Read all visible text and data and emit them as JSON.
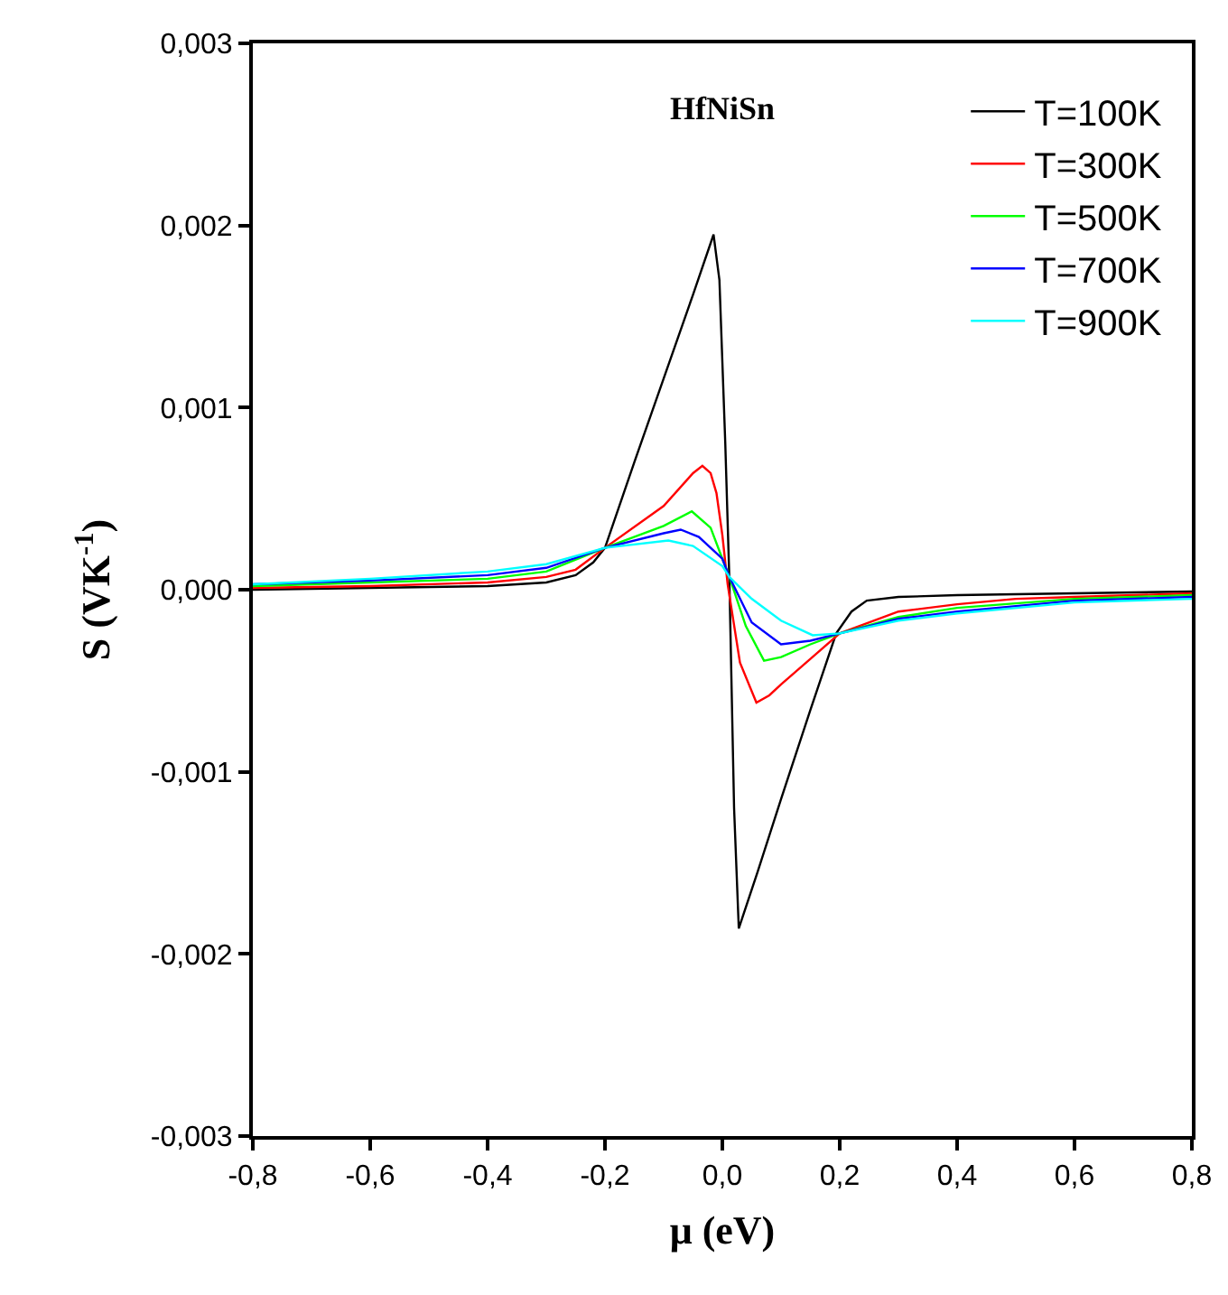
{
  "chart_data": {
    "type": "line",
    "xlabel": "μ (eV)",
    "ylabel": "S (VK$^{-1}$)",
    "annotations": [
      "HfNiSn"
    ],
    "xlim": [
      -0.8,
      0.8
    ],
    "xticks": [
      {
        "value": -0.8,
        "label": "-0,8"
      },
      {
        "value": -0.6,
        "label": "-0,6"
      },
      {
        "value": -0.4,
        "label": "-0,4"
      },
      {
        "value": -0.2,
        "label": "-0,2"
      },
      {
        "value": 0,
        "label": "0,0"
      },
      {
        "value": 0.2,
        "label": "0,2"
      },
      {
        "value": 0.4,
        "label": "0,4"
      },
      {
        "value": 0.6,
        "label": "0,6"
      },
      {
        "value": 0.8,
        "label": "0,8"
      }
    ],
    "ylim": [
      -0.003,
      0.003
    ],
    "yticks": [
      {
        "value": -0.003,
        "label": "-0,003"
      },
      {
        "value": -0.002,
        "label": "-0,002"
      },
      {
        "value": -0.001,
        "label": "-0,001"
      },
      {
        "value": 0,
        "label": "0,000"
      },
      {
        "value": 0.001,
        "label": "0,001"
      },
      {
        "value": 0.002,
        "label": "0,002"
      },
      {
        "value": 0.003,
        "label": "0,003"
      }
    ],
    "grid": false,
    "legend": "top right",
    "marker": "none",
    "line_style": "solid",
    "series": [
      {
        "name": "T=100K",
        "color": "#000000",
        "x": [
          -0.8,
          -0.6,
          -0.4,
          -0.3,
          -0.25,
          -0.22,
          -0.2,
          -0.15,
          -0.1,
          -0.05,
          -0.015,
          -0.005,
          0.005,
          0.012,
          0.02,
          0.028,
          0.06,
          0.1,
          0.15,
          0.194,
          0.22,
          0.246,
          0.3,
          0.4,
          0.6,
          0.8
        ],
        "values": [
          0,
          1e-05,
          2e-05,
          4e-05,
          8e-05,
          0.00015,
          0.00023,
          0.0007,
          0.00116,
          0.00162,
          0.00195,
          0.0017,
          0.0008,
          5e-05,
          -0.0012,
          -0.00186,
          -0.00155,
          -0.00115,
          -0.00066,
          -0.00024,
          -0.00012,
          -6e-05,
          -4e-05,
          -3e-05,
          -2e-05,
          -1e-05
        ]
      },
      {
        "name": "T=300K",
        "color": "#ff0000",
        "x": [
          -0.8,
          -0.6,
          -0.4,
          -0.3,
          -0.25,
          -0.2,
          -0.1,
          -0.05,
          -0.034,
          -0.02,
          -0.01,
          0,
          0.009,
          0.03,
          0.058,
          0.08,
          0.1,
          0.15,
          0.2,
          0.3,
          0.4,
          0.5,
          0.6,
          0.8
        ],
        "values": [
          1e-05,
          2e-05,
          4e-05,
          7e-05,
          0.00011,
          0.00023,
          0.00046,
          0.00064,
          0.00068,
          0.00064,
          0.00053,
          0.0003,
          3e-05,
          -0.0004,
          -0.00062,
          -0.00058,
          -0.00052,
          -0.00038,
          -0.00024,
          -0.00012,
          -8e-05,
          -5e-05,
          -4e-05,
          -2e-05
        ]
      },
      {
        "name": "T=500K",
        "color": "#00ff00",
        "x": [
          -0.8,
          -0.6,
          -0.4,
          -0.3,
          -0.2,
          -0.1,
          -0.052,
          -0.02,
          0,
          0.012,
          0.04,
          0.071,
          0.1,
          0.15,
          0.2,
          0.3,
          0.4,
          0.6,
          0.8
        ],
        "values": [
          2e-05,
          4e-05,
          6e-05,
          0.0001,
          0.00023,
          0.00035,
          0.00043,
          0.00034,
          0.00017,
          7e-05,
          -0.0002,
          -0.00039,
          -0.00037,
          -0.0003,
          -0.00024,
          -0.00015,
          -0.0001,
          -5e-05,
          -3e-05
        ]
      },
      {
        "name": "T=700K",
        "color": "#0000ff",
        "x": [
          -0.8,
          -0.6,
          -0.4,
          -0.3,
          -0.2,
          -0.1,
          -0.071,
          -0.04,
          0,
          0.012,
          0.05,
          0.1,
          0.15,
          0.2,
          0.3,
          0.4,
          0.6,
          0.8
        ],
        "values": [
          3e-05,
          5e-05,
          8e-05,
          0.00012,
          0.00023,
          0.00031,
          0.00033,
          0.00029,
          0.00017,
          7e-05,
          -0.00018,
          -0.0003,
          -0.00028,
          -0.00024,
          -0.00016,
          -0.00012,
          -6e-05,
          -4e-05
        ]
      },
      {
        "name": "T=900K",
        "color": "#00ffff",
        "x": [
          -0.8,
          -0.6,
          -0.4,
          -0.3,
          -0.2,
          -0.092,
          -0.05,
          0,
          0.012,
          0.05,
          0.1,
          0.154,
          0.2,
          0.3,
          0.4,
          0.6,
          0.8
        ],
        "values": [
          3e-05,
          6e-05,
          0.0001,
          0.00014,
          0.00023,
          0.00027,
          0.00024,
          0.00013,
          7e-05,
          -5e-05,
          -0.00017,
          -0.00025,
          -0.00024,
          -0.00017,
          -0.00013,
          -7e-05,
          -5e-05
        ]
      }
    ]
  }
}
